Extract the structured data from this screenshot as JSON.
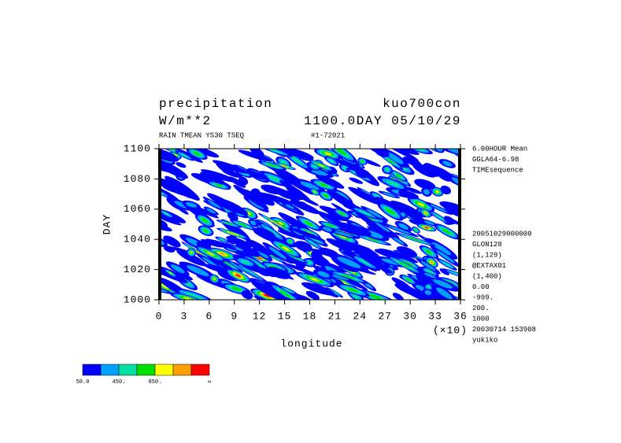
{
  "chart_data": {
    "type": "contour",
    "title": "precipitation",
    "experiment": "kuo700con",
    "units": "W/m**2",
    "time_label": "1100.0DAY 05/10/29",
    "subtitle": "RAIN TMEAN YS30 TSEQ",
    "run_id": "#1-72021",
    "ylabel": "DAY",
    "ylim": [
      1000,
      1100
    ],
    "yticks": [
      1000,
      1020,
      1040,
      1060,
      1080,
      1100
    ],
    "xlabel": "longitude",
    "x_multiplier": "(×10)",
    "xlim": [
      0,
      36
    ],
    "xticks": [
      0,
      3,
      6,
      9,
      12,
      15,
      18,
      21,
      24,
      27,
      30,
      33,
      36
    ],
    "info_top": [
      "6.00HOUR Mean",
      "GGLA64-6.98",
      "TIMEsequence"
    ],
    "info_bottom": [
      "20051029000000",
      "GLON128",
      "(1,129)",
      "@EXTAX01",
      "(1,400)",
      "0.00",
      "-999.",
      "200.",
      "1000",
      "20030714 153908",
      "yukiko"
    ],
    "colorbar_colors": [
      "#0000ff",
      "#00a0ff",
      "#00e0a0",
      "#00e000",
      "#ffff00",
      "#ffa000",
      "#ff0000"
    ],
    "colorbar_labels": [
      "50.0",
      "450.",
      "850.",
      "∞"
    ]
  }
}
